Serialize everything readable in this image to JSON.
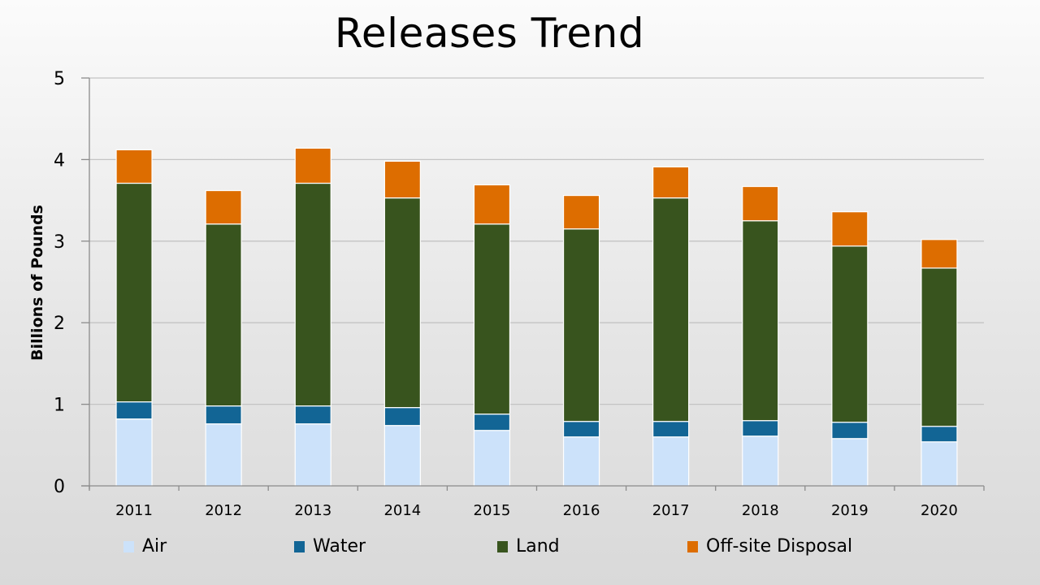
{
  "chart_data": {
    "type": "bar",
    "stacked": true,
    "title": "Releases Trend",
    "xlabel": "",
    "ylabel": "Billions of Pounds",
    "ylim": [
      0,
      5
    ],
    "yticks": [
      0,
      1,
      2,
      3,
      4,
      5
    ],
    "grid": true,
    "legend_position": "bottom",
    "categories": [
      "2011",
      "2012",
      "2013",
      "2014",
      "2015",
      "2016",
      "2017",
      "2018",
      "2019",
      "2020"
    ],
    "series": [
      {
        "name": "Air",
        "color": "#cce2fa",
        "values": [
          0.82,
          0.76,
          0.76,
          0.74,
          0.68,
          0.6,
          0.6,
          0.61,
          0.58,
          0.54
        ]
      },
      {
        "name": "Water",
        "color": "#126595",
        "values": [
          0.21,
          0.22,
          0.22,
          0.22,
          0.2,
          0.19,
          0.19,
          0.19,
          0.2,
          0.19
        ]
      },
      {
        "name": "Land",
        "color": "#38541e",
        "values": [
          2.68,
          2.23,
          2.73,
          2.57,
          2.33,
          2.36,
          2.74,
          2.45,
          2.16,
          1.94
        ]
      },
      {
        "name": "Off-site Disposal",
        "color": "#dd6d00",
        "values": [
          0.41,
          0.41,
          0.43,
          0.45,
          0.48,
          0.41,
          0.38,
          0.42,
          0.42,
          0.35
        ]
      }
    ]
  }
}
